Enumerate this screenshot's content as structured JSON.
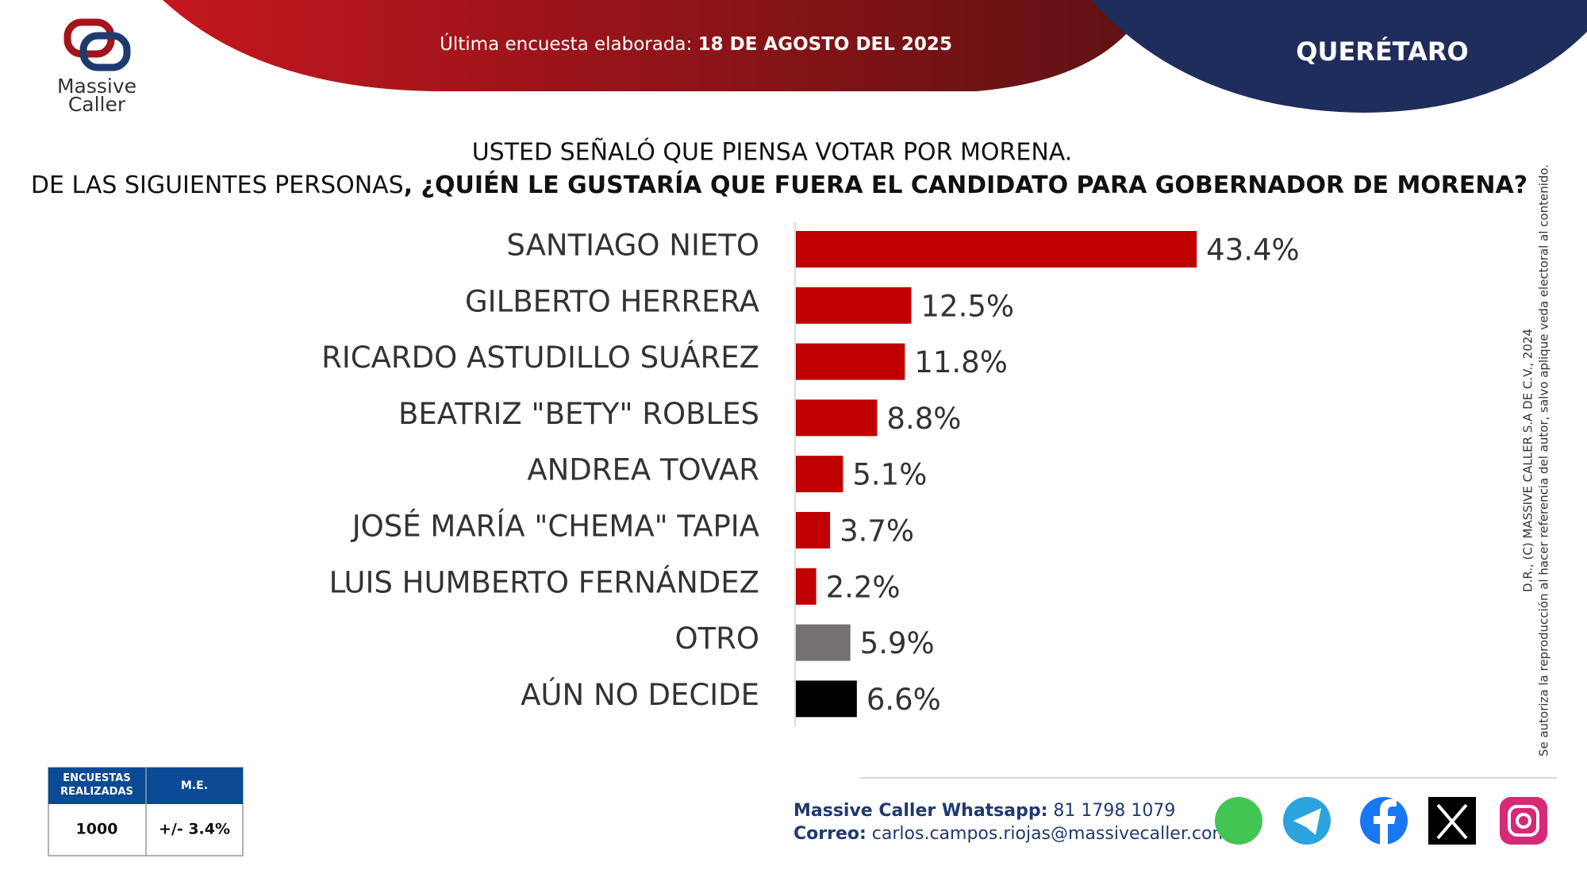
{
  "header": {
    "survey_label": "Última encuesta elaborada:",
    "survey_date": "18 DE AGOSTO DEL 2025",
    "state": "QUERÉTARO"
  },
  "logo": {
    "line1": "Massive",
    "line2": "Caller"
  },
  "question": {
    "line1": "USTED SEÑALÓ QUE PIENSA VOTAR POR MORENA.",
    "line2_regular": "DE LAS SIGUIENTES PERSONAS",
    "line2_bold": ", ¿QUIÉN LE GUSTARÍA QUE FUERA EL CANDIDATO PARA GOBERNADOR DE MORENA?"
  },
  "chart_data": {
    "type": "bar",
    "orientation": "horizontal",
    "categories": [
      "SANTIAGO NIETO",
      "GILBERTO HERRERA",
      "RICARDO ASTUDILLO SUÁREZ",
      "BEATRIZ \"BETY\" ROBLES",
      "ANDREA TOVAR",
      "JOSÉ MARÍA \"CHEMA\" TAPIA",
      "LUIS HUMBERTO FERNÁNDEZ",
      "OTRO",
      "AÚN NO DECIDE"
    ],
    "values": [
      43.4,
      12.5,
      11.8,
      8.8,
      5.1,
      3.7,
      2.2,
      5.9,
      6.6
    ],
    "value_labels": [
      "43.4%",
      "12.5%",
      "11.8%",
      "8.8%",
      "5.1%",
      "3.7%",
      "2.2%",
      "5.9%",
      "6.6%"
    ],
    "colors": [
      "#c00000",
      "#c00000",
      "#c00000",
      "#c00000",
      "#c00000",
      "#c00000",
      "#c00000",
      "#767171",
      "#000000"
    ]
  },
  "sample_table": {
    "headers": [
      "ENCUESTAS REALIZADAS",
      "M.E."
    ],
    "rows": [
      [
        1000,
        "+/- 3.4%"
      ]
    ]
  },
  "contact": {
    "whatsapp_label": "Massive Caller Whatsapp:",
    "whatsapp": "81 1798 1079",
    "email_label": "Correo:",
    "email": "carlos.campos.riojas@massivecaller.com"
  },
  "copyright": {
    "line1": "D.R., (C) MASSIVE CALLER S.A DE C.V., 2024",
    "line2": "Se autoriza la reproducción al hacer referencia del autor, salvo aplique veda electoral al contenido."
  }
}
